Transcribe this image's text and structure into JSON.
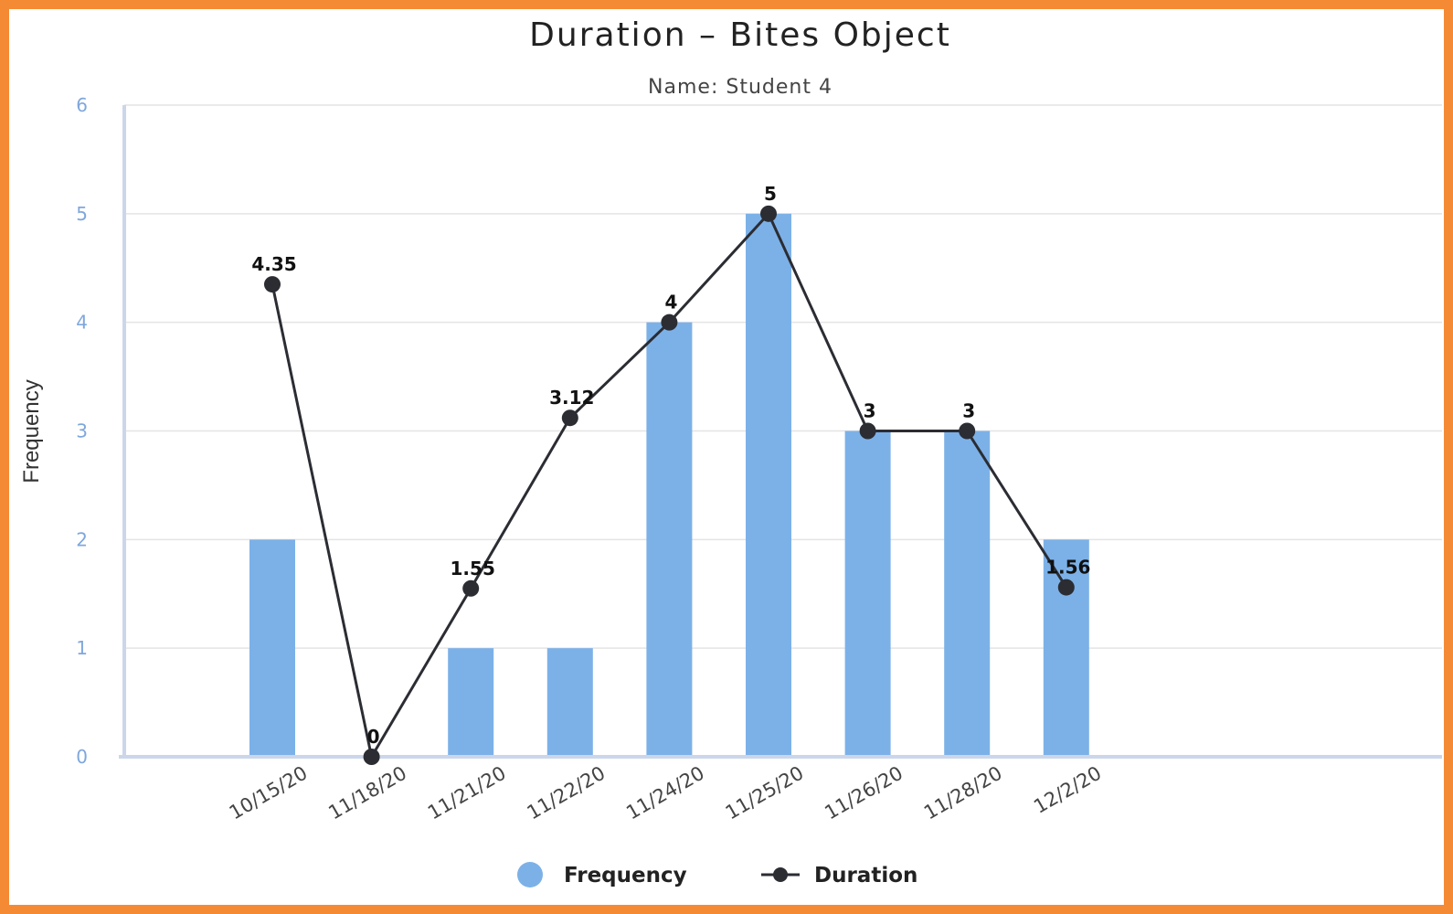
{
  "chart_data": {
    "type": "bar",
    "title": "Duration – Bites Object",
    "subtitle": "Name: Student 4",
    "ylabel": "Frequency",
    "xlabel": "",
    "ylim": [
      0,
      6
    ],
    "yticks": [
      "0",
      "1",
      "2",
      "3",
      "4",
      "5",
      "6"
    ],
    "categories": [
      "10/15/20",
      "11/18/20",
      "11/21/20",
      "11/22/20",
      "11/24/20",
      "11/25/20",
      "11/26/20",
      "11/28/20",
      "12/2/20"
    ],
    "series": [
      {
        "name": "Frequency",
        "type": "bar",
        "color": "#7cb1e8",
        "values": [
          2,
          0,
          1,
          1,
          4,
          5,
          3,
          3,
          2
        ]
      },
      {
        "name": "Duration",
        "type": "line",
        "color": "#2b2d33",
        "values": [
          4.35,
          0,
          1.55,
          3.12,
          4,
          5,
          3,
          3,
          1.56
        ],
        "labels": [
          "4.35",
          "0",
          "1.55",
          "3.12",
          "4",
          "5",
          "3",
          "3",
          "1.56"
        ]
      }
    ],
    "grid": true,
    "legend_position": "bottom"
  },
  "colors": {
    "frame": "#f58a35",
    "grid": "#e4e4e4",
    "axis": "#ccd6eb"
  }
}
